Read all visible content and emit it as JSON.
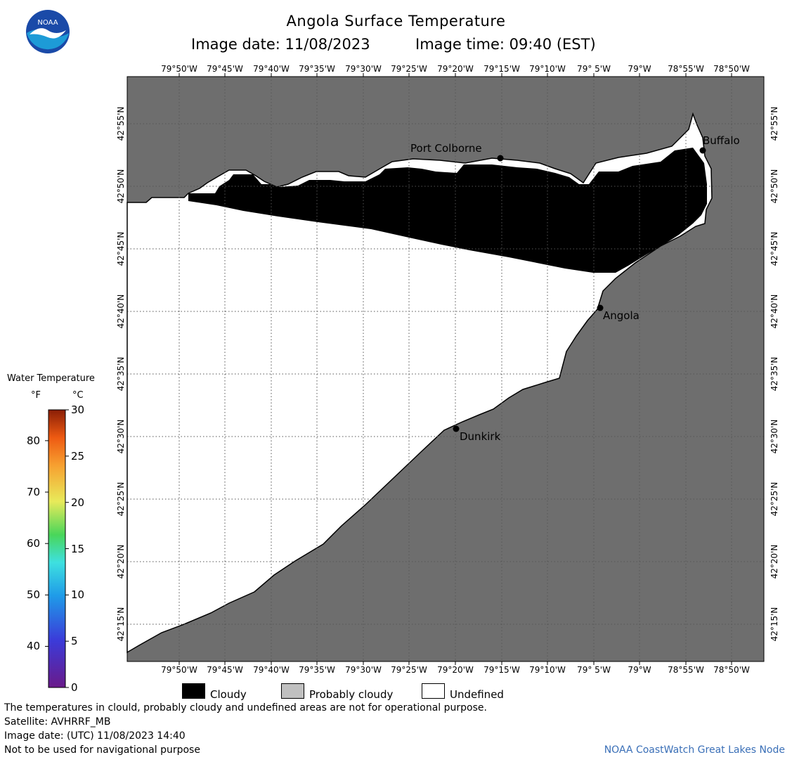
{
  "title": "Angola Surface Temperature",
  "subtitle": {
    "date": "Image date: 11/08/2023",
    "time": "Image time: 09:40 (EST)"
  },
  "logo": {
    "text": "NOAA",
    "colors": {
      "top": "#1a4aa8",
      "bottom": "#1d9bd7",
      "gull": "#ffffff"
    }
  },
  "colors": {
    "land": "#6e6e6e",
    "cloud": "#000000",
    "probably_cloudy": "#c0c0c0",
    "undefined": "#ffffff",
    "credit": "#3a6fb7"
  },
  "lon_labels": [
    "79°50'W",
    "79°45'W",
    "79°40'W",
    "79°35'W",
    "79°30'W",
    "79°25'W",
    "79°20'W",
    "79°15'W",
    "79°10'W",
    "79° 5'W",
    "79°W",
    "78°55'W",
    "78°50'W"
  ],
  "lat_labels": [
    "42°55'N",
    "42°50'N",
    "42°45'N",
    "42°40'N",
    "42°35'N",
    "42°30'N",
    "42°25'N",
    "42°20'N",
    "42°15'N"
  ],
  "cities": {
    "port_colborne": "Port Colborne",
    "buffalo": "Buffalo",
    "angola": "Angola",
    "dunkirk": "Dunkirk"
  },
  "colorbar": {
    "title": "Water Temperature",
    "unit_f": "°F",
    "unit_c": "°C",
    "f_ticks": [
      "80",
      "70",
      "60",
      "50",
      "40"
    ],
    "c_ticks": [
      "30",
      "25",
      "20",
      "15",
      "10",
      "5",
      "0"
    ],
    "f_values": [
      80,
      70,
      60,
      50,
      40
    ],
    "c_values": [
      30,
      25,
      20,
      15,
      10,
      5,
      0
    ],
    "c_range": [
      0,
      30
    ]
  },
  "legend": {
    "cloudy": "Cloudy",
    "probably_cloudy": "Probably cloudy",
    "undefined": "Undefined"
  },
  "footer": {
    "line1": "The temperatures in clould, probably cloudy and undefined areas are not for operational purpose.",
    "line2": "Satellite: AVHRRF_MB",
    "line3": "Image date: (UTC) 11/08/2023  14:40",
    "line4": "Not to be used for navigational purpose",
    "credit": "NOAA CoastWatch Great Lakes Node"
  }
}
